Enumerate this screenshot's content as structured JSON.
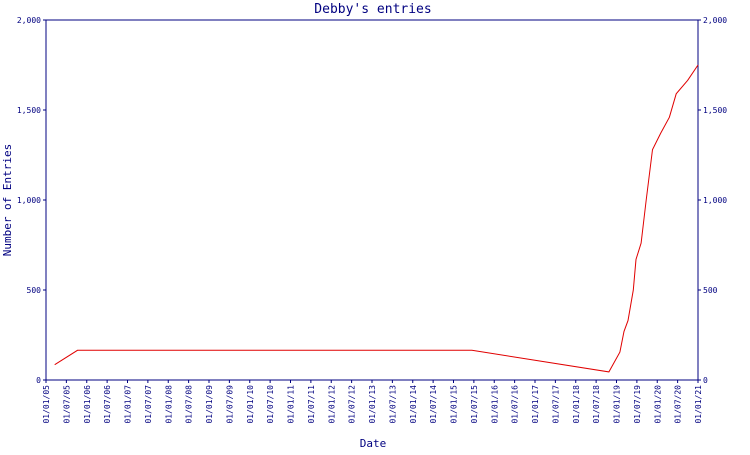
{
  "chart_data": {
    "type": "line",
    "title": "Debby's entries",
    "xlabel": "Date",
    "ylabel": "Number of Entries",
    "x_tick_labels": [
      "01/01/05",
      "01/07/05",
      "01/01/06",
      "01/07/06",
      "01/01/07",
      "01/07/07",
      "01/01/08",
      "01/07/08",
      "01/01/09",
      "01/07/09",
      "01/01/10",
      "01/07/10",
      "01/01/11",
      "01/07/11",
      "01/01/12",
      "01/07/12",
      "01/01/13",
      "01/07/13",
      "01/01/14",
      "01/07/14",
      "01/01/15",
      "01/07/15",
      "01/01/16",
      "01/07/16",
      "01/01/17",
      "01/07/17",
      "01/01/18",
      "01/07/18",
      "01/01/19",
      "01/07/19",
      "01/01/20",
      "01/07/20",
      "01/01/21"
    ],
    "y_ticks": [
      0,
      500,
      1000,
      1500,
      2000
    ],
    "y_tick_labels": [
      "0",
      "500",
      "1,000",
      "1,500",
      "2,000"
    ],
    "ylim": [
      0,
      2000
    ],
    "xlim": [
      "2005-01-01",
      "2021-01-01"
    ],
    "grid": false,
    "colors": {
      "frame": "#000080",
      "line": "#e00000",
      "text": "#000080"
    },
    "series": [
      {
        "values": [
          {
            "x": "2005-03-20",
            "y": 85
          },
          {
            "x": "2005-10-10",
            "y": 165
          },
          {
            "x": "2015-06-15",
            "y": 165
          },
          {
            "x": "2018-10-25",
            "y": 45
          },
          {
            "x": "2019-02-01",
            "y": 155
          },
          {
            "x": "2019-03-10",
            "y": 270
          },
          {
            "x": "2019-04-15",
            "y": 330
          },
          {
            "x": "2019-06-01",
            "y": 500
          },
          {
            "x": "2019-06-25",
            "y": 670
          },
          {
            "x": "2019-08-10",
            "y": 760
          },
          {
            "x": "2019-09-25",
            "y": 1000
          },
          {
            "x": "2019-11-20",
            "y": 1280
          },
          {
            "x": "2020-02-01",
            "y": 1370
          },
          {
            "x": "2020-04-20",
            "y": 1460
          },
          {
            "x": "2020-06-20",
            "y": 1590
          },
          {
            "x": "2020-10-01",
            "y": 1665
          },
          {
            "x": "2021-01-01",
            "y": 1750
          }
        ]
      }
    ]
  }
}
